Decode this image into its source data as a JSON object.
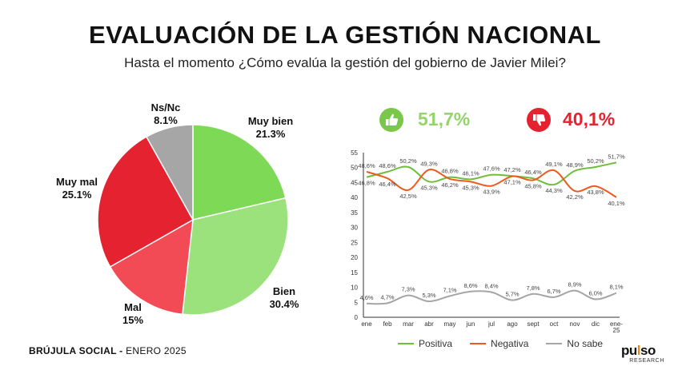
{
  "title": "EVALUACIÓN DE LA GESTIÓN NACIONAL",
  "subtitle": "Hasta el momento ¿Cómo evalúa la gestión del gobierno de Javier Milei?",
  "footer": {
    "brand": "BRÚJULA SOCIAL -",
    "date": "ENERO 2025"
  },
  "logo": {
    "pre": "pu",
    "accent": "l",
    "post": "so",
    "sub": "RESEARCH"
  },
  "colors": {
    "positive": "#6fbf3c",
    "negative": "#ee5a1e",
    "nosabe": "#a6a6a6"
  },
  "highlights": {
    "positive": "51,7%",
    "negative": "40,1%",
    "positive_icon": "thumbs-up-icon",
    "negative_icon": "thumbs-down-icon"
  },
  "chart_data": [
    {
      "type": "pie",
      "slices": [
        {
          "label": "Muy bien",
          "value_text": "21.3%",
          "value": 21.3,
          "color": "#7ed957"
        },
        {
          "label": "Bien",
          "value_text": "30.4%",
          "value": 30.4,
          "color": "#9be27d"
        },
        {
          "label": "Mal",
          "value_text": "15%",
          "value": 15,
          "color": "#f34b55"
        },
        {
          "label": "Muy mal",
          "value_text": "25.1%",
          "value": 25.1,
          "color": "#e5222f"
        },
        {
          "label": "Ns/Nc",
          "value_text": "8.1%",
          "value": 8.1,
          "color": "#a6a6a6"
        }
      ]
    },
    {
      "type": "line",
      "x": [
        "ene",
        "feb",
        "mar",
        "abr",
        "may",
        "jun",
        "jul",
        "ago",
        "sept",
        "oct",
        "nov",
        "dic",
        "ene-25"
      ],
      "ylim": [
        0,
        55
      ],
      "yticks": [
        0,
        5,
        10,
        15,
        20,
        25,
        30,
        35,
        40,
        45,
        50,
        55
      ],
      "series": [
        {
          "name": "Positiva",
          "values": [
            46.8,
            48.6,
            50.2,
            45.3,
            46.8,
            46.1,
            47.6,
            47.2,
            46.4,
            44.3,
            48.9,
            50.2,
            51.7
          ],
          "labels": [
            "46,8%",
            "48,6%",
            "50,2%",
            "45,3%",
            "46,8%",
            "46,1%",
            "47,6%",
            "47,2%",
            "46,4%",
            "44,3%",
            "48,9%",
            "50,2%",
            "51,7%"
          ]
        },
        {
          "name": "Negativa",
          "values": [
            48.6,
            46.4,
            42.5,
            49.3,
            46.2,
            45.3,
            43.9,
            47.1,
            45.8,
            49.1,
            42.2,
            43.8,
            40.1
          ],
          "labels": [
            "48,6%",
            "46,4%",
            "42,5%",
            "49,3%",
            "46,2%",
            "45,3%",
            "43,9%",
            "47,1%",
            "45,8%",
            "49,1%",
            "42,2%",
            "43,8%",
            "40,1%"
          ]
        },
        {
          "name": "No sabe",
          "values": [
            4.6,
            4.7,
            7.3,
            5.3,
            7.1,
            8.6,
            8.4,
            5.7,
            7.8,
            6.7,
            8.9,
            6.0,
            8.1
          ],
          "labels": [
            "4,6%",
            "4,7%",
            "7,3%",
            "5,3%",
            "7,1%",
            "8,6%",
            "8,4%",
            "5,7%",
            "7,8%",
            "6,7%",
            "8,9%",
            "6,0%",
            "8,1%"
          ]
        }
      ]
    }
  ]
}
